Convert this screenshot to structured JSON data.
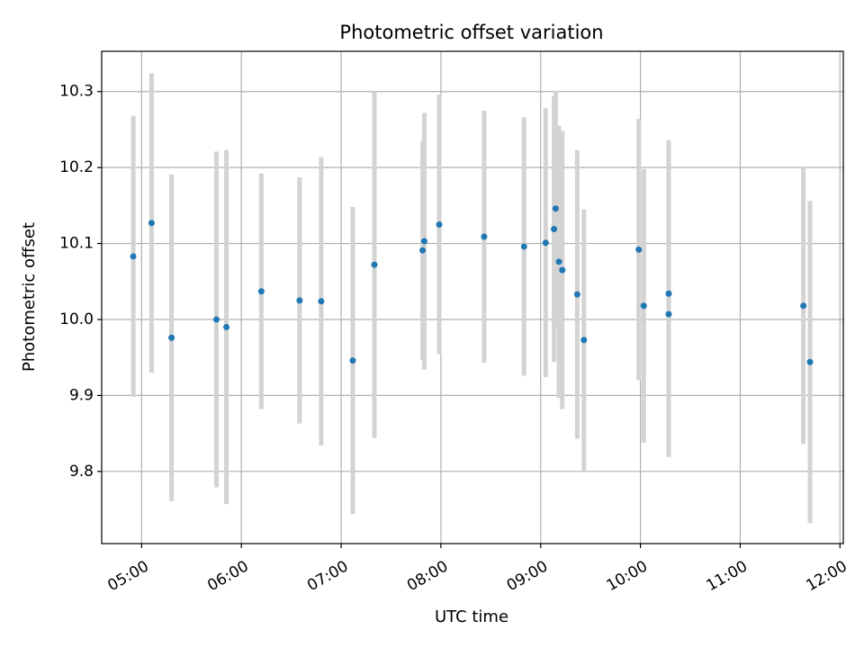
{
  "chart_data": {
    "type": "scatter",
    "title": "Photometric offset variation",
    "xlabel": "UTC time",
    "ylabel": "Photometric offset",
    "x_ticks": [
      "05:00",
      "06:00",
      "07:00",
      "08:00",
      "09:00",
      "10:00",
      "11:00",
      "12:00"
    ],
    "y_ticks": [
      "9.8",
      "9.9",
      "10.0",
      "10.1",
      "10.2",
      "10.3"
    ],
    "xlim": [
      "04:36",
      "12:02"
    ],
    "ylim": [
      9.705,
      10.353
    ],
    "grid": true,
    "colors": {
      "points": "#1f77b4",
      "errorbars": "#d3d3d3",
      "grid": "#b0b0b0"
    },
    "points": [
      {
        "x": "04:55",
        "y": 10.083,
        "err": 0.185
      },
      {
        "x": "05:06",
        "y": 10.127,
        "err": 0.197
      },
      {
        "x": "05:18",
        "y": 9.976,
        "err": 0.215
      },
      {
        "x": "05:45",
        "y": 10.0,
        "err": 0.221
      },
      {
        "x": "05:51",
        "y": 9.99,
        "err": 0.233
      },
      {
        "x": "06:12",
        "y": 10.037,
        "err": 0.155
      },
      {
        "x": "06:35",
        "y": 10.025,
        "err": 0.162
      },
      {
        "x": "06:48",
        "y": 10.024,
        "err": 0.19
      },
      {
        "x": "07:07",
        "y": 9.946,
        "err": 0.202
      },
      {
        "x": "07:20",
        "y": 10.072,
        "err": 0.228
      },
      {
        "x": "07:49",
        "y": 10.091,
        "err": 0.144
      },
      {
        "x": "07:50",
        "y": 10.103,
        "err": 0.169
      },
      {
        "x": "07:59",
        "y": 10.125,
        "err": 0.171
      },
      {
        "x": "08:26",
        "y": 10.109,
        "err": 0.166
      },
      {
        "x": "08:50",
        "y": 10.096,
        "err": 0.17
      },
      {
        "x": "09:03",
        "y": 10.101,
        "err": 0.177
      },
      {
        "x": "09:08",
        "y": 10.119,
        "err": 0.175
      },
      {
        "x": "09:09",
        "y": 10.146,
        "err": 0.155
      },
      {
        "x": "09:11",
        "y": 10.076,
        "err": 0.179
      },
      {
        "x": "09:13",
        "y": 10.065,
        "err": 0.183
      },
      {
        "x": "09:22",
        "y": 10.033,
        "err": 0.19
      },
      {
        "x": "09:26",
        "y": 9.973,
        "err": 0.172
      },
      {
        "x": "09:59",
        "y": 10.092,
        "err": 0.172
      },
      {
        "x": "10:02",
        "y": 10.018,
        "err": 0.18
      },
      {
        "x": "10:17",
        "y": 10.034,
        "err": 0.202
      },
      {
        "x": "10:17",
        "y": 10.007,
        "err": 0.188
      },
      {
        "x": "11:38",
        "y": 10.018,
        "err": 0.182
      },
      {
        "x": "11:42",
        "y": 9.944,
        "err": 0.212
      }
    ]
  }
}
